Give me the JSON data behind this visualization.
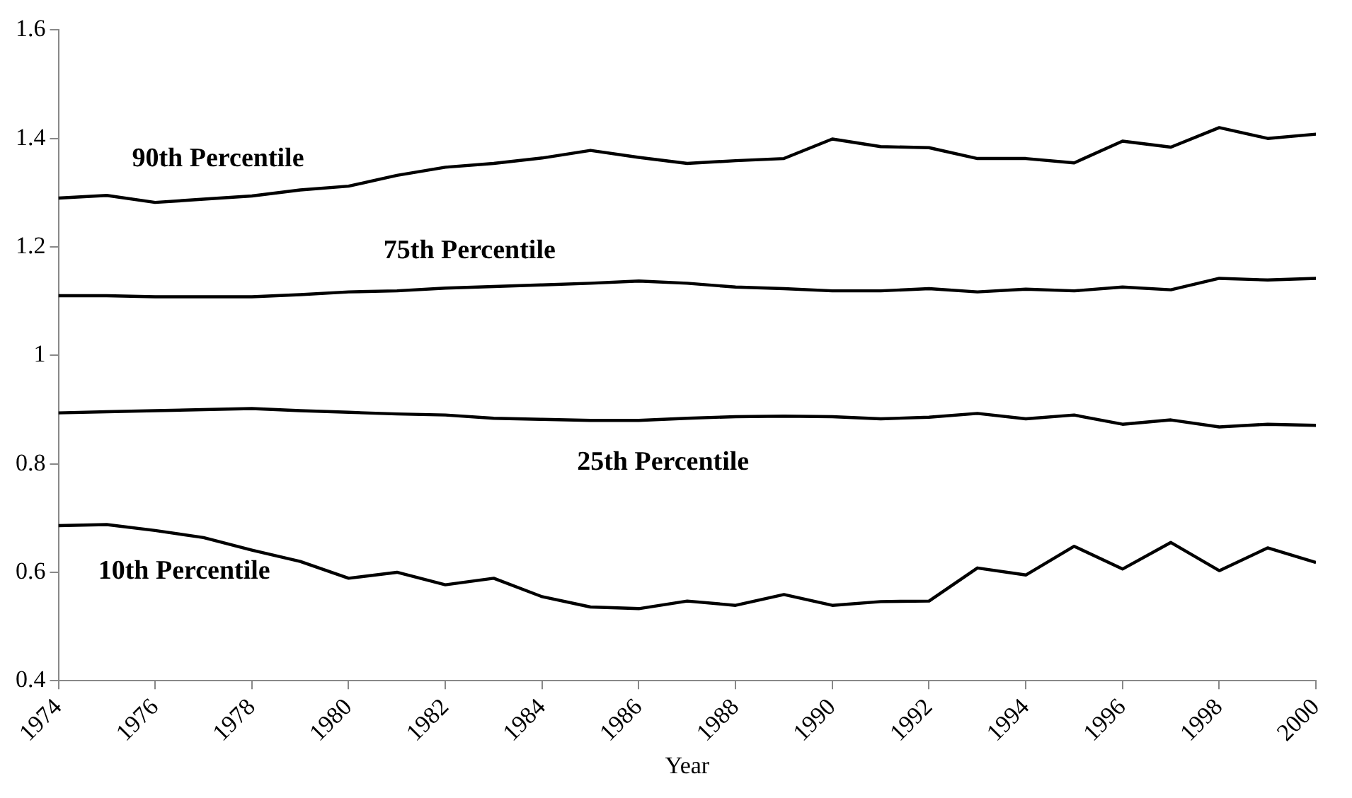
{
  "chart_data": {
    "type": "line",
    "xlabel": "Year",
    "x": [
      1974,
      1975,
      1976,
      1977,
      1978,
      1979,
      1980,
      1981,
      1982,
      1983,
      1984,
      1985,
      1986,
      1987,
      1988,
      1989,
      1990,
      1991,
      1992,
      1993,
      1994,
      1995,
      1996,
      1997,
      1998,
      1999,
      2000
    ],
    "series": [
      {
        "name": "90th Percentile",
        "color": "#000000",
        "values": [
          1.29,
          1.295,
          1.282,
          1.288,
          1.294,
          1.305,
          1.312,
          1.332,
          1.347,
          1.354,
          1.364,
          1.378,
          1.365,
          1.354,
          1.359,
          1.363,
          1.399,
          1.385,
          1.383,
          1.363,
          1.363,
          1.355,
          1.395,
          1.384,
          1.42,
          1.4,
          1.408
        ]
      },
      {
        "name": "75th Percentile",
        "color": "#000000",
        "values": [
          1.11,
          1.11,
          1.108,
          1.108,
          1.108,
          1.112,
          1.117,
          1.119,
          1.124,
          1.127,
          1.13,
          1.133,
          1.137,
          1.133,
          1.126,
          1.123,
          1.119,
          1.119,
          1.123,
          1.117,
          1.122,
          1.119,
          1.126,
          1.121,
          1.142,
          1.139,
          1.142
        ]
      },
      {
        "name": "25th Percentile",
        "color": "#000000",
        "values": [
          0.894,
          0.896,
          0.898,
          0.9,
          0.902,
          0.898,
          0.895,
          0.892,
          0.89,
          0.884,
          0.882,
          0.88,
          0.88,
          0.884,
          0.887,
          0.888,
          0.887,
          0.883,
          0.886,
          0.893,
          0.883,
          0.89,
          0.873,
          0.881,
          0.868,
          0.873,
          0.871
        ]
      },
      {
        "name": "10th Percentile",
        "color": "#000000",
        "values": [
          0.686,
          0.688,
          0.677,
          0.664,
          0.641,
          0.62,
          0.589,
          0.6,
          0.577,
          0.589,
          0.555,
          0.536,
          0.533,
          0.547,
          0.539,
          0.559,
          0.539,
          0.546,
          0.547,
          0.608,
          0.595,
          0.648,
          0.606,
          0.655,
          0.603,
          0.645,
          0.618
        ]
      }
    ],
    "xlim": [
      1974,
      2000
    ],
    "xticks": [
      1974,
      1976,
      1978,
      1980,
      1982,
      1984,
      1986,
      1988,
      1990,
      1992,
      1994,
      1996,
      1998,
      2000
    ],
    "ylim": [
      0.4,
      1.6
    ],
    "yticks": [
      0.4,
      0.6,
      0.8,
      1,
      1.2,
      1.4,
      1.6
    ],
    "grid": false,
    "legend": false,
    "marker": "none",
    "line_style": "solid"
  }
}
